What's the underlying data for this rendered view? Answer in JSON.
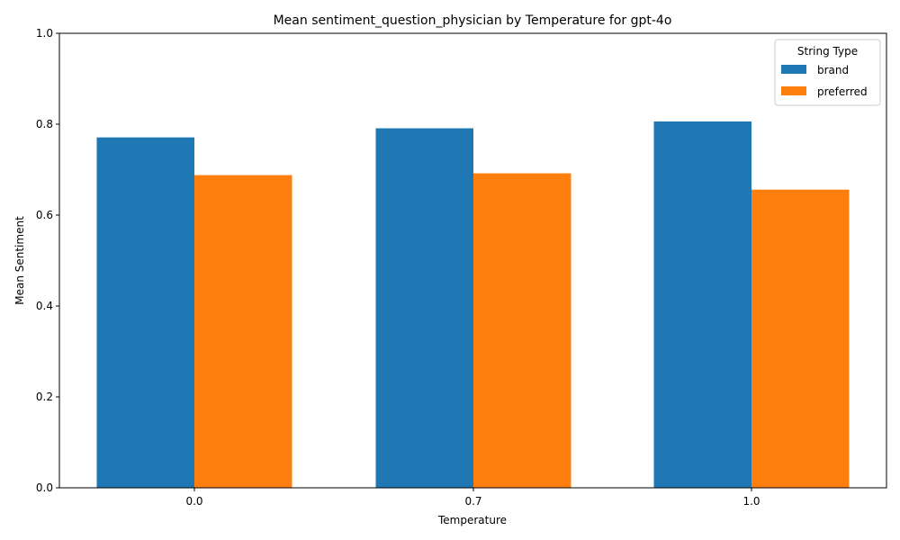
{
  "chart_data": {
    "type": "bar",
    "title": "Mean sentiment_question_physician by Temperature for gpt-4o",
    "xlabel": "Temperature",
    "ylabel": "Mean Sentiment",
    "categories": [
      "0.0",
      "0.7",
      "1.0"
    ],
    "ylim": [
      0,
      1.0
    ],
    "yticks": [
      "0.0",
      "0.2",
      "0.4",
      "0.6",
      "0.8",
      "1.0"
    ],
    "legend": {
      "title": "String Type",
      "placement": "top-right"
    },
    "series": [
      {
        "name": "brand",
        "color": "#1f77b4",
        "values": [
          0.771,
          0.791,
          0.806
        ]
      },
      {
        "name": "preferred",
        "color": "#ff7f0e",
        "values": [
          0.688,
          0.692,
          0.656
        ]
      }
    ],
    "grid": false
  }
}
